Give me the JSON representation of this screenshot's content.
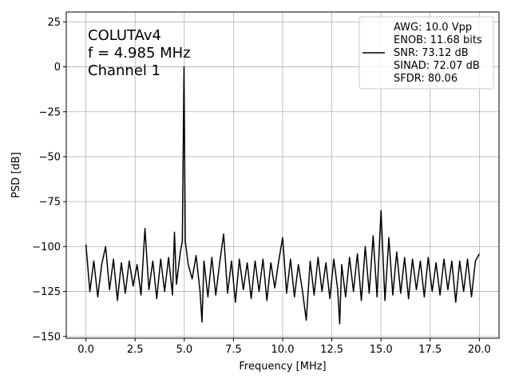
{
  "chart_data": {
    "type": "line",
    "annotation_lines": [
      "COLUTAv4",
      "f = 4.985 MHz",
      "Channel 1"
    ],
    "xlabel": "Frequency [MHz]",
    "ylabel": "PSD [dB]",
    "legend_lines": [
      "AWG: 10.0 Vpp",
      "ENOB: 11.68 bits",
      "SNR: 73.12 dB",
      "SINAD: 72.07 dB",
      "SFDR: 80.06"
    ],
    "legend_position": "upper right",
    "grid": true,
    "xlim": [
      -1.0,
      21.0
    ],
    "ylim": [
      -151,
      30.5
    ],
    "xticks": [
      {
        "value": 0,
        "label": "0.0"
      },
      {
        "value": 2.5,
        "label": "2.5"
      },
      {
        "value": 5,
        "label": "5.0"
      },
      {
        "value": 7.5,
        "label": "7.5"
      },
      {
        "value": 10,
        "label": "10.0"
      },
      {
        "value": 12.5,
        "label": "12.5"
      },
      {
        "value": 15,
        "label": "15.0"
      },
      {
        "value": 17.5,
        "label": "17.5"
      },
      {
        "value": 20,
        "label": "20.0"
      }
    ],
    "yticks": [
      {
        "value": -150,
        "label": "−150"
      },
      {
        "value": -125,
        "label": "−125"
      },
      {
        "value": -100,
        "label": "−100"
      },
      {
        "value": -75,
        "label": "−75"
      },
      {
        "value": -50,
        "label": "−50"
      },
      {
        "value": -25,
        "label": "−25"
      },
      0,
      25
    ],
    "series": [
      {
        "color": "#000000",
        "x": [
          0,
          0.2,
          0.4,
          0.6,
          0.8,
          1.0,
          1.2,
          1.4,
          1.6,
          1.8,
          2.0,
          2.2,
          2.4,
          2.6,
          2.8,
          3.0,
          3.2,
          3.4,
          3.6,
          3.8,
          4.0,
          4.2,
          4.4,
          4.5,
          4.6,
          4.8,
          4.9,
          4.985,
          5.05,
          5.2,
          5.4,
          5.6,
          5.8,
          5.9,
          6.0,
          6.2,
          6.4,
          6.6,
          6.8,
          7.0,
          7.2,
          7.4,
          7.6,
          7.8,
          8.0,
          8.2,
          8.4,
          8.6,
          8.8,
          9.0,
          9.2,
          9.4,
          9.6,
          9.8,
          10.0,
          10.2,
          10.4,
          10.6,
          10.8,
          11.0,
          11.2,
          11.4,
          11.6,
          11.8,
          12.0,
          12.2,
          12.4,
          12.6,
          12.8,
          12.9,
          13.0,
          13.2,
          13.4,
          13.6,
          13.8,
          14.0,
          14.2,
          14.4,
          14.6,
          14.8,
          15.0,
          15.2,
          15.4,
          15.6,
          15.8,
          16.0,
          16.2,
          16.4,
          16.6,
          16.8,
          17.0,
          17.2,
          17.4,
          17.6,
          17.8,
          18.0,
          18.2,
          18.4,
          18.6,
          18.8,
          19.0,
          19.2,
          19.4,
          19.6,
          19.8,
          20.0
        ],
        "values": [
          -99,
          -125,
          -108,
          -128,
          -110,
          -100,
          -124,
          -107,
          -130,
          -109,
          -126,
          -108,
          -122,
          -110,
          -127,
          -90,
          -124,
          -108,
          -129,
          -107,
          -125,
          -106,
          -127,
          -92,
          -121,
          -103,
          -97,
          0,
          -97,
          -110,
          -118,
          -105,
          -125,
          -142,
          -108,
          -128,
          -106,
          -127,
          -109,
          -93,
          -126,
          -108,
          -131,
          -107,
          -124,
          -109,
          -129,
          -108,
          -125,
          -107,
          -130,
          -109,
          -123,
          -108,
          -95,
          -126,
          -107,
          -128,
          -110,
          -124,
          -141,
          -108,
          -127,
          -106,
          -125,
          -109,
          -129,
          -107,
          -124,
          -143,
          -110,
          -128,
          -106,
          -125,
          -104,
          -130,
          -100,
          -126,
          -94,
          -128,
          -80,
          -130,
          -95,
          -127,
          -103,
          -126,
          -106,
          -129,
          -107,
          -124,
          -108,
          -128,
          -106,
          -125,
          -109,
          -127,
          -107,
          -124,
          -108,
          -131,
          -108,
          -125,
          -107,
          -128,
          -108,
          -104
        ]
      }
    ]
  }
}
